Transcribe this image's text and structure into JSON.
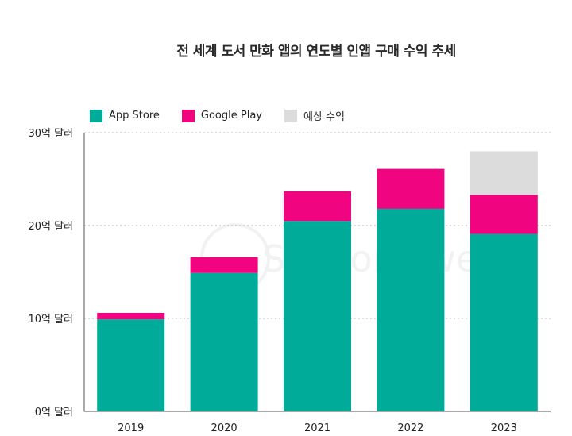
{
  "chart_data": {
    "type": "bar",
    "stacked": true,
    "title": "전 세계 도서 만화 앱의 연도별 인앱 구매 수익 추세",
    "xlabel": "",
    "ylabel": "",
    "categories": [
      "2019",
      "2020",
      "2021",
      "2022",
      "2023"
    ],
    "series": [
      {
        "name": "App Store",
        "color": "#00ab9a",
        "values": [
          9.9,
          14.9,
          20.5,
          21.8,
          19.1
        ]
      },
      {
        "name": "Google Play",
        "color": "#f0047f",
        "values": [
          0.7,
          1.7,
          3.2,
          4.3,
          4.2
        ]
      },
      {
        "name": "예상 수익",
        "color": "#dcdcdc",
        "values": [
          0,
          0,
          0,
          0,
          4.7
        ]
      }
    ],
    "ylim": [
      0,
      30
    ],
    "yticks": [
      0,
      10,
      20,
      30
    ],
    "ytick_labels": [
      "0억 달러",
      "10억 달러",
      "20억 달러",
      "30억 달러"
    ],
    "grid": true,
    "legend_position": "top-left",
    "watermark": "SensorTower"
  }
}
